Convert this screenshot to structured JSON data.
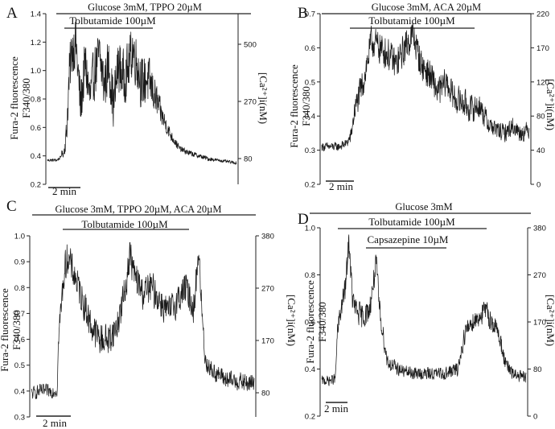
{
  "chart_data": [
    {
      "type": "line",
      "panel": "A",
      "header": "Glucose 3mM, TPPO 20µM",
      "treatments": [
        "Tolbutamide 100µM"
      ],
      "ylabel_left": [
        "Fura-2 fluorescence",
        "F340/380"
      ],
      "ylabel_right": "[Ca²⁺]i(nM)",
      "left_ticks": [
        "0.2",
        "0.4",
        "0.6",
        "0.8",
        "1.0",
        "1.2",
        "1.4"
      ],
      "right_ticks": [
        "80",
        "270",
        "500"
      ],
      "ylim": [
        0.2,
        1.4
      ],
      "scale_bar": "2 min",
      "series": [
        {
          "x": [
            0,
            0.5,
            1.0,
            1.4,
            1.5,
            1.7,
            2.0,
            2.3,
            2.6,
            3.0,
            3.5,
            4.0,
            4.5,
            5.0,
            5.5,
            6.0,
            6.5,
            7.0,
            7.5,
            8.0,
            8.5,
            9.0,
            9.5,
            10.0,
            10.5,
            11.0,
            11.5,
            12.0,
            13.0,
            14.0,
            15.0,
            16.0,
            17.0,
            18.0,
            19.0,
            20.0
          ],
          "y": [
            0.37,
            0.37,
            0.37,
            0.39,
            0.42,
            0.41,
            0.55,
            0.95,
            1.15,
            1.2,
            0.75,
            1.05,
            0.8,
            1.0,
            1.1,
            0.9,
            1.05,
            0.75,
            1.05,
            0.95,
            1.0,
            1.15,
            1.05,
            0.9,
            0.95,
            0.88,
            0.8,
            0.7,
            0.55,
            0.45,
            0.42,
            0.4,
            0.38,
            0.37,
            0.36,
            0.35
          ],
          "noise": [
            0.01,
            0.01,
            0.01,
            0.01,
            0.02,
            0.02,
            0.1,
            0.18,
            0.18,
            0.18,
            0.18,
            0.18,
            0.18,
            0.18,
            0.18,
            0.18,
            0.18,
            0.18,
            0.18,
            0.18,
            0.18,
            0.18,
            0.18,
            0.18,
            0.18,
            0.15,
            0.12,
            0.08,
            0.04,
            0.02,
            0.02,
            0.015,
            0.015,
            0.01,
            0.01,
            0.01
          ]
        }
      ]
    },
    {
      "type": "line",
      "panel": "B",
      "header": "Glucose 3mM,  ACA 20µM",
      "treatments": [
        "Tolbutamide 100µM"
      ],
      "ylabel_left": [
        "Fura-2 fluorescence",
        "F340/380"
      ],
      "ylabel_right": "[Ca²⁺]i(nM)",
      "left_ticks": [
        "0.2",
        "0.3",
        "0.4",
        "0.5",
        "0.6",
        "0.7"
      ],
      "right_ticks": [
        "0",
        "40",
        "80",
        "120",
        "170",
        "220"
      ],
      "ylim": [
        0.2,
        0.7
      ],
      "scale_bar": "2 min",
      "series": [
        {
          "x": [
            0,
            1,
            2,
            3,
            3.5,
            4,
            5,
            6,
            7,
            8,
            9,
            10,
            11,
            12,
            13,
            14,
            15,
            16,
            17,
            18,
            19,
            20,
            21,
            22,
            23,
            24,
            25
          ],
          "y": [
            0.31,
            0.31,
            0.31,
            0.32,
            0.34,
            0.42,
            0.5,
            0.62,
            0.6,
            0.58,
            0.55,
            0.6,
            0.64,
            0.55,
            0.52,
            0.47,
            0.5,
            0.45,
            0.44,
            0.42,
            0.43,
            0.38,
            0.36,
            0.35,
            0.37,
            0.35,
            0.36
          ],
          "noise": [
            0.012,
            0.012,
            0.012,
            0.012,
            0.02,
            0.035,
            0.045,
            0.045,
            0.045,
            0.045,
            0.045,
            0.045,
            0.045,
            0.045,
            0.045,
            0.04,
            0.04,
            0.04,
            0.04,
            0.04,
            0.035,
            0.03,
            0.025,
            0.025,
            0.025,
            0.025,
            0.025
          ]
        }
      ]
    },
    {
      "type": "line",
      "panel": "C",
      "header": "Glucose 3mM, TPPO 20µM, ACA 20µM",
      "treatments": [
        "Tolbutamide 100µM"
      ],
      "ylabel_left": [
        "Fura-2 fluorescence",
        "F340/380"
      ],
      "ylabel_right": "[Ca²⁺]i(nM)",
      "left_ticks": [
        "0.3",
        "0.4",
        "0.5",
        "0.6",
        "0.7",
        "0.8",
        "0.9",
        "1.0"
      ],
      "right_ticks": [
        "80",
        "170",
        "270",
        "380"
      ],
      "ylim": [
        0.3,
        1.0
      ],
      "scale_bar": "2 min",
      "series": [
        {
          "x": [
            0,
            1,
            2,
            3,
            3.2,
            3.8,
            4.2,
            5,
            6,
            7,
            8,
            9,
            10,
            11,
            11.5,
            12,
            13,
            14,
            15,
            16,
            17,
            18,
            19,
            19.5,
            20,
            20.3,
            21,
            22,
            23,
            24,
            25,
            26
          ],
          "y": [
            0.39,
            0.4,
            0.4,
            0.4,
            0.62,
            0.85,
            0.92,
            0.85,
            0.75,
            0.65,
            0.6,
            0.6,
            0.65,
            0.8,
            0.93,
            0.85,
            0.78,
            0.8,
            0.75,
            0.7,
            0.75,
            0.8,
            0.72,
            0.95,
            0.65,
            0.52,
            0.48,
            0.46,
            0.44,
            0.44,
            0.43,
            0.43
          ],
          "noise": [
            0.025,
            0.025,
            0.025,
            0.025,
            0.05,
            0.06,
            0.06,
            0.06,
            0.06,
            0.06,
            0.06,
            0.06,
            0.06,
            0.06,
            0.06,
            0.06,
            0.06,
            0.06,
            0.06,
            0.06,
            0.06,
            0.06,
            0.06,
            0.06,
            0.05,
            0.04,
            0.035,
            0.035,
            0.035,
            0.035,
            0.035,
            0.035
          ]
        }
      ]
    },
    {
      "type": "line",
      "panel": "D",
      "header": "Glucose 3mM",
      "treatments": [
        "Tolbutamide 100µM",
        "Capsazepine 10µM"
      ],
      "ylabel_left": [
        "Fura-2 fluorescence",
        "F340/380"
      ],
      "ylabel_right": "[Ca²⁺]i(nM)",
      "left_ticks": [
        "0.2",
        "0.4",
        "0.6",
        "0.8",
        "1.0"
      ],
      "right_ticks": [
        "0",
        "80",
        "170",
        "270",
        "380"
      ],
      "ylim": [
        0.2,
        1.0
      ],
      "scale_bar": "2 min",
      "series": [
        {
          "x": [
            0,
            1,
            2,
            2.3,
            2.8,
            3.5,
            4,
            4.5,
            5,
            6,
            7,
            7.5,
            8,
            8.5,
            9,
            9.5,
            10,
            12,
            14,
            16,
            18,
            20,
            21,
            22,
            23,
            24,
            25,
            26,
            27,
            28,
            29,
            30
          ],
          "y": [
            0.35,
            0.35,
            0.36,
            0.55,
            0.65,
            0.75,
            0.95,
            0.7,
            0.65,
            0.62,
            0.65,
            0.75,
            0.85,
            0.65,
            0.55,
            0.45,
            0.42,
            0.39,
            0.38,
            0.38,
            0.38,
            0.4,
            0.55,
            0.6,
            0.62,
            0.65,
            0.6,
            0.55,
            0.42,
            0.38,
            0.37,
            0.36
          ],
          "noise": [
            0.02,
            0.02,
            0.02,
            0.04,
            0.05,
            0.05,
            0.05,
            0.05,
            0.05,
            0.05,
            0.05,
            0.05,
            0.05,
            0.05,
            0.04,
            0.035,
            0.03,
            0.025,
            0.025,
            0.025,
            0.025,
            0.03,
            0.04,
            0.045,
            0.045,
            0.045,
            0.045,
            0.04,
            0.03,
            0.025,
            0.025,
            0.025
          ]
        }
      ]
    }
  ]
}
